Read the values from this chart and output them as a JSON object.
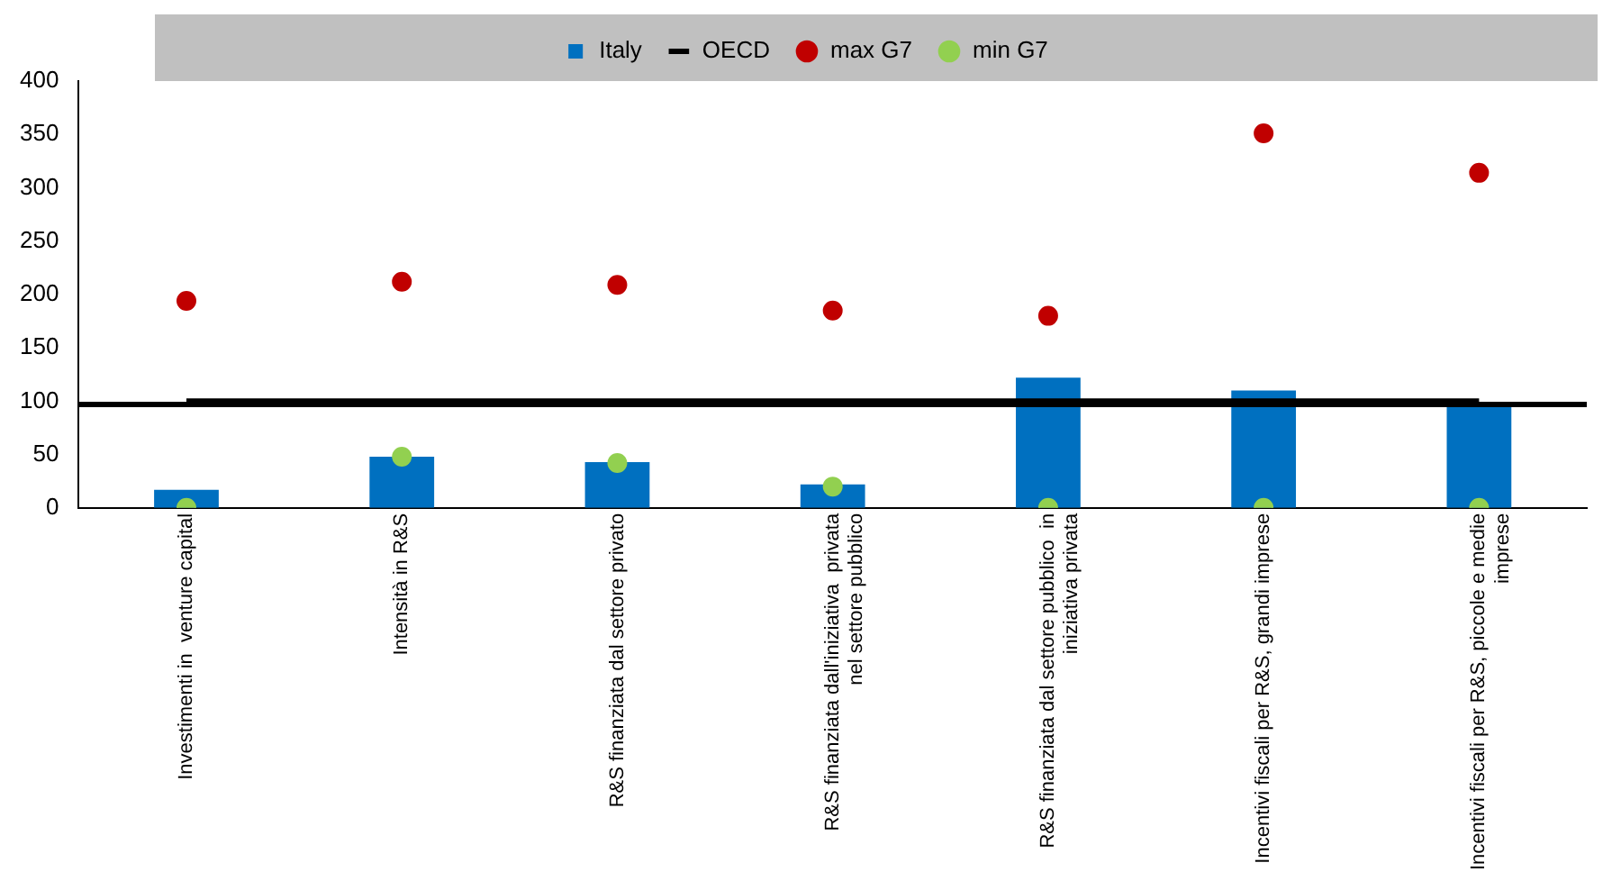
{
  "chart_data": {
    "type": "bar",
    "categories": [
      "Investimenti in  venture capital",
      "Intensità in R&S",
      "R&S finanziata dal settore privato",
      "R&S finanziata dall'iniziativa  privata nel settore pubblico",
      "R&S finanziata dal settore pubblico  in iniziativa privata",
      "Incentivi fiscali per R&S, grandi imprese",
      "Incentivi fiscali per R&S, piccole e medie imprese"
    ],
    "series": [
      {
        "name": "Italy",
        "color": "#0070c0",
        "values": [
          17,
          48,
          43,
          22,
          122,
          110,
          97
        ]
      },
      {
        "name": "OECD",
        "type": "line",
        "color": "#000000",
        "marker": "none",
        "values": [
          100,
          100,
          100,
          100,
          100,
          100,
          100
        ]
      },
      {
        "name": "max G7",
        "type": "scatter",
        "color": "#c00000",
        "marker": "circle",
        "x": [
          "Investimenti in  venture capital",
          "Intensità in R&S",
          "R&S finanziata dal settore privato",
          "R&S finanziata dall'iniziativa  privata nel settore pubblico",
          "R&S finanziata dal settore pubblico  in iniziativa privata",
          "Incentivi fiscali per R&S, grandi imprese",
          "Incentivi fiscali per R&S, piccole e medie imprese"
        ],
        "values": [
          194,
          212,
          209,
          185,
          180,
          351,
          314
        ]
      },
      {
        "name": "min G7",
        "type": "scatter",
        "color": "#92d050",
        "marker": "circle",
        "x": [
          "Investimenti in  venture capital",
          "Intensità in R&S",
          "R&S finanziata dal settore privato",
          "R&S finanziata dall'iniziativa  privata nel settore pubblico",
          "R&S finanziata dal settore pubblico  in iniziativa privata",
          "Incentivi fiscali per R&S, grandi imprese",
          "Incentivi fiscali per R&S, piccole e medie imprese"
        ],
        "values": [
          0,
          48,
          42,
          20,
          0,
          0,
          0
        ]
      }
    ],
    "ylim": [
      0,
      400
    ],
    "yticks": [
      0,
      50,
      100,
      150,
      200,
      250,
      300,
      350,
      400
    ],
    "grid": false,
    "legend": "top",
    "ref_lines": [
      {
        "axis": "y",
        "value": 97,
        "color": "#000000"
      }
    ]
  }
}
